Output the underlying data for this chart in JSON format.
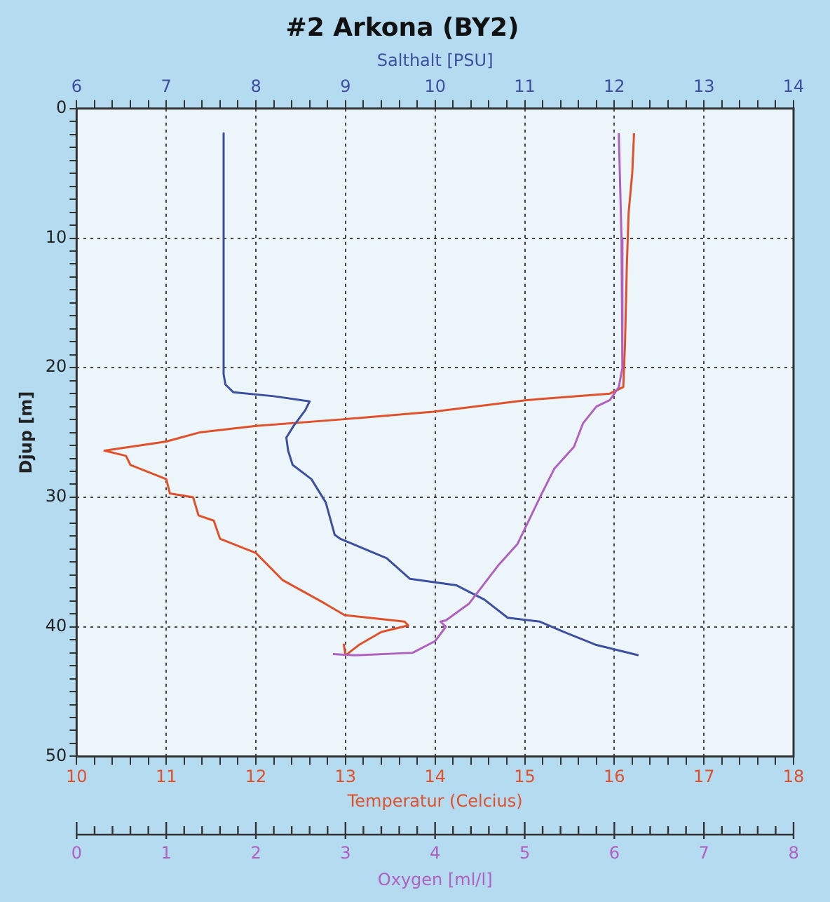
{
  "chart_data": [
    {
      "type": "line",
      "title": "#2 Arkona (BY2)",
      "xlabel": "Temperatur (Celcius)",
      "x2label": "Salthalt [PSU]",
      "ylabel": "Djup [m]",
      "xlim": [
        10,
        18
      ],
      "x2lim": [
        6,
        14
      ],
      "ylim": [
        50,
        0
      ],
      "xticks": [
        10,
        {
          "value": 10.2,
          "label": null
        },
        {
          "value": 10.4,
          "label": null
        },
        {
          "value": 10.6,
          "label": null
        },
        {
          "value": 10.8,
          "label": null
        },
        11,
        {
          "value": 11.2,
          "label": null
        },
        {
          "value": 11.4,
          "label": null
        },
        {
          "value": 11.6,
          "label": null
        },
        {
          "value": 11.8,
          "label": null
        },
        12,
        {
          "value": 12.2,
          "label": null
        },
        {
          "value": 12.4,
          "label": null
        },
        {
          "value": 12.6,
          "label": null
        },
        {
          "value": 12.8,
          "label": null
        },
        13,
        {
          "value": 13.2,
          "label": null
        },
        {
          "value": 13.4,
          "label": null
        },
        {
          "value": 13.6,
          "label": null
        },
        {
          "value": 13.8,
          "label": null
        },
        14,
        {
          "value": 14.2,
          "label": null
        },
        {
          "value": 14.4,
          "label": null
        },
        {
          "value": 14.6,
          "label": null
        },
        {
          "value": 14.8,
          "label": null
        },
        15,
        {
          "value": 15.2,
          "label": null
        },
        {
          "value": 15.4,
          "label": null
        },
        {
          "value": 15.6,
          "label": null
        },
        {
          "value": 15.8,
          "label": null
        },
        16,
        {
          "value": 16.2,
          "label": null
        },
        {
          "value": 16.4,
          "label": null
        },
        {
          "value": 16.6,
          "label": null
        },
        {
          "value": 16.8,
          "label": null
        },
        17,
        {
          "value": 17.2,
          "label": null
        },
        {
          "value": 17.4,
          "label": null
        },
        {
          "value": 17.6,
          "label": null
        },
        {
          "value": 17.8,
          "label": null
        },
        18
      ],
      "x2ticks": [
        6,
        {
          "value": 6.2,
          "label": null
        },
        {
          "value": 6.4,
          "label": null
        },
        {
          "value": 6.6,
          "label": null
        },
        {
          "value": 6.8,
          "label": null
        },
        7,
        {
          "value": 7.2,
          "label": null
        },
        {
          "value": 7.4,
          "label": null
        },
        {
          "value": 7.6,
          "label": null
        },
        {
          "value": 7.8,
          "label": null
        },
        8,
        {
          "value": 8.2,
          "label": null
        },
        {
          "value": 8.4,
          "label": null
        },
        {
          "value": 8.6,
          "label": null
        },
        {
          "value": 8.8,
          "label": null
        },
        9,
        {
          "value": 9.2,
          "label": null
        },
        {
          "value": 9.4,
          "label": null
        },
        {
          "value": 9.6,
          "label": null
        },
        {
          "value": 9.8,
          "label": null
        },
        10,
        {
          "value": 10.2,
          "label": null
        },
        {
          "value": 10.4,
          "label": null
        },
        {
          "value": 10.6,
          "label": null
        },
        {
          "value": 10.8,
          "label": null
        },
        11,
        {
          "value": 11.2,
          "label": null
        },
        {
          "value": 11.4,
          "label": null
        },
        {
          "value": 11.6,
          "label": null
        },
        {
          "value": 11.8,
          "label": null
        },
        12,
        {
          "value": 12.2,
          "label": null
        },
        {
          "value": 12.4,
          "label": null
        },
        {
          "value": 12.6,
          "label": null
        },
        {
          "value": 12.8,
          "label": null
        },
        13,
        {
          "value": 13.2,
          "label": null
        },
        {
          "value": 13.4,
          "label": null
        },
        {
          "value": 13.6,
          "label": null
        },
        {
          "value": 13.8,
          "label": null
        },
        14
      ],
      "yticks": [
        0,
        {
          "value": 1,
          "label": null
        },
        {
          "value": 2,
          "label": null
        },
        {
          "value": 3,
          "label": null
        },
        {
          "value": 4,
          "label": null
        },
        {
          "value": 5,
          "label": null
        },
        {
          "value": 6,
          "label": null
        },
        {
          "value": 7,
          "label": null
        },
        {
          "value": 8,
          "label": null
        },
        {
          "value": 9,
          "label": null
        },
        10,
        {
          "value": 11,
          "label": null
        },
        {
          "value": 12,
          "label": null
        },
        {
          "value": 13,
          "label": null
        },
        {
          "value": 14,
          "label": null
        },
        {
          "value": 15,
          "label": null
        },
        {
          "value": 16,
          "label": null
        },
        {
          "value": 17,
          "label": null
        },
        {
          "value": 18,
          "label": null
        },
        {
          "value": 19,
          "label": null
        },
        20,
        {
          "value": 21,
          "label": null
        },
        {
          "value": 22,
          "label": null
        },
        {
          "value": 23,
          "label": null
        },
        {
          "value": 24,
          "label": null
        },
        {
          "value": 25,
          "label": null
        },
        {
          "value": 26,
          "label": null
        },
        {
          "value": 27,
          "label": null
        },
        {
          "value": 28,
          "label": null
        },
        {
          "value": 29,
          "label": null
        },
        30,
        {
          "value": 31,
          "label": null
        },
        {
          "value": 32,
          "label": null
        },
        {
          "value": 33,
          "label": null
        },
        {
          "value": 34,
          "label": null
        },
        {
          "value": 35,
          "label": null
        },
        {
          "value": 36,
          "label": null
        },
        {
          "value": 37,
          "label": null
        },
        {
          "value": 38,
          "label": null
        },
        {
          "value": 39,
          "label": null
        },
        40,
        {
          "value": 41,
          "label": null
        },
        {
          "value": 42,
          "label": null
        },
        {
          "value": 43,
          "label": null
        },
        {
          "value": 44,
          "label": null
        },
        {
          "value": 45,
          "label": null
        },
        {
          "value": 46,
          "label": null
        },
        {
          "value": 47,
          "label": null
        },
        {
          "value": 48,
          "label": null
        },
        {
          "value": 49,
          "label": null
        },
        50
      ],
      "grid": true,
      "line_style": "solid",
      "series": [
        {
          "axis": "x2",
          "color": "#3d4fa0",
          "x": [
            7.64,
            7.64,
            7.66,
            7.75,
            8.2,
            8.6,
            8.55,
            8.42,
            8.34,
            8.36,
            8.41,
            8.62,
            8.78,
            8.88,
            8.94,
            9.46,
            9.72,
            10.24,
            10.55,
            10.81,
            11.17,
            11.44,
            11.8,
            12.27
          ],
          "values": [
            1.9,
            20.5,
            21.3,
            21.9,
            22.2,
            22.6,
            23.3,
            24.5,
            25.4,
            26.4,
            27.5,
            28.6,
            30.4,
            32.9,
            33.2,
            34.7,
            36.3,
            36.8,
            37.9,
            39.3,
            39.6,
            40.4,
            41.4,
            42.2
          ]
        },
        {
          "color": "#e0502a",
          "x": [
            16.22,
            16.2,
            16.16,
            16.14,
            16.12,
            16.1,
            15.95,
            15.02,
            13.98,
            12.94,
            12.0,
            11.37,
            11.0,
            10.31,
            10.55,
            10.6,
            11.0,
            11.04,
            11.3,
            11.36,
            11.53,
            11.6,
            12.0,
            12.3,
            12.77,
            12.99,
            13.66,
            13.7,
            13.4,
            13.15,
            13.0,
            12.98
          ],
          "values": [
            1.9,
            5,
            8,
            12,
            18,
            21.5,
            22,
            22.5,
            23.4,
            24,
            24.5,
            25.0,
            25.7,
            26.4,
            26.8,
            27.5,
            28.6,
            29.7,
            30,
            31.4,
            31.8,
            33.2,
            34.3,
            36.4,
            38.2,
            39.1,
            39.6,
            39.9,
            40.4,
            41.4,
            42.2,
            41.3
          ]
        }
      ]
    },
    {
      "type": "line",
      "xlabel": "Oxygen [ml/l]",
      "xlim": [
        0,
        8
      ],
      "ylim": [
        50,
        0
      ],
      "tick_labels": "x",
      "line_style": "solid",
      "xticks": [
        0,
        {
          "value": 0.2,
          "label": null
        },
        {
          "value": 0.4,
          "label": null
        },
        {
          "value": 0.6,
          "label": null
        },
        {
          "value": 0.8,
          "label": null
        },
        1,
        {
          "value": 1.2,
          "label": null
        },
        {
          "value": 1.4,
          "label": null
        },
        {
          "value": 1.6,
          "label": null
        },
        {
          "value": 1.8,
          "label": null
        },
        2,
        {
          "value": 2.2,
          "label": null
        },
        {
          "value": 2.4,
          "label": null
        },
        {
          "value": 2.6,
          "label": null
        },
        {
          "value": 2.8,
          "label": null
        },
        3,
        {
          "value": 3.2,
          "label": null
        },
        {
          "value": 3.4,
          "label": null
        },
        {
          "value": 3.6,
          "label": null
        },
        {
          "value": 3.8,
          "label": null
        },
        4,
        {
          "value": 4.2,
          "label": null
        },
        {
          "value": 4.4,
          "label": null
        },
        {
          "value": 4.6,
          "label": null
        },
        {
          "value": 4.8,
          "label": null
        },
        5,
        {
          "value": 5.2,
          "label": null
        },
        {
          "value": 5.4,
          "label": null
        },
        {
          "value": 5.6,
          "label": null
        },
        {
          "value": 5.8,
          "label": null
        },
        6,
        {
          "value": 6.2,
          "label": null
        },
        {
          "value": 6.4,
          "label": null
        },
        {
          "value": 6.6,
          "label": null
        },
        {
          "value": 6.8,
          "label": null
        },
        7,
        {
          "value": 7.2,
          "label": null
        },
        {
          "value": 7.4,
          "label": null
        },
        {
          "value": 7.6,
          "label": null
        },
        {
          "value": 7.8,
          "label": null
        },
        8
      ],
      "series": [
        {
          "color": "#b060c0",
          "x": [
            6.05,
            6.08,
            6.09,
            6.05,
            6.0,
            5.95,
            5.8,
            5.65,
            5.55,
            5.33,
            5.17,
            4.92,
            4.7,
            4.38,
            4.12,
            4.06,
            4.12,
            4.0,
            3.75,
            3.1,
            2.86
          ],
          "values": [
            1.9,
            10,
            20,
            21.5,
            22,
            22.5,
            23,
            24.3,
            26.1,
            27.8,
            30,
            33.6,
            35.3,
            38.2,
            39.5,
            39.6,
            40,
            41.1,
            42,
            42.2,
            42.1
          ]
        }
      ]
    }
  ]
}
